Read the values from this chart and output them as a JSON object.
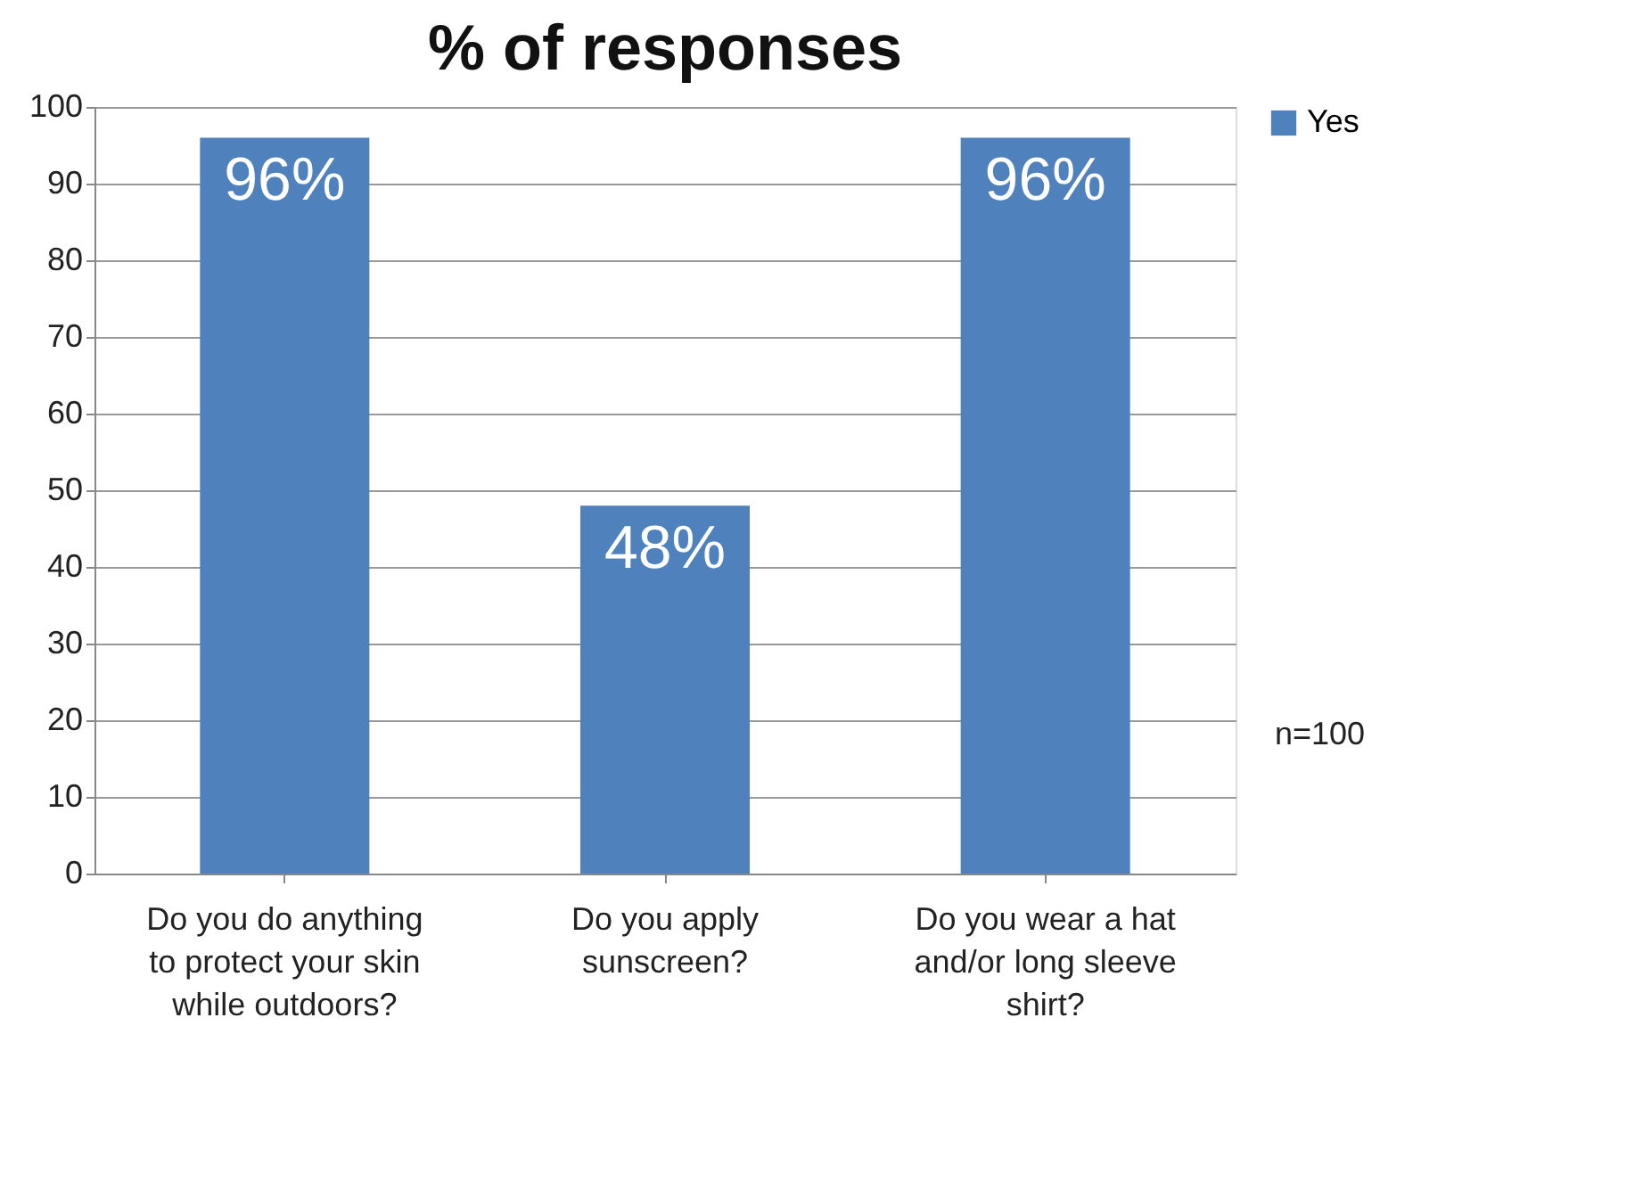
{
  "chart_data": {
    "type": "bar",
    "title": "% of responses",
    "categories": [
      "Do you do anything to protect your skin while outdoors?",
      "Do you apply sunscreen?",
      "Do you wear a hat and/or long sleeve shirt?"
    ],
    "series": [
      {
        "name": "Yes",
        "color": "#4f81bd",
        "values": [
          96,
          48,
          96
        ],
        "value_labels": [
          "96%",
          "48%",
          "96%"
        ]
      }
    ],
    "ylim": [
      0,
      100
    ],
    "yticks": [
      0,
      10,
      20,
      30,
      40,
      50,
      60,
      70,
      80,
      90,
      100
    ],
    "grid": "y",
    "legend": "right",
    "annotations": [
      "n=100"
    ]
  }
}
